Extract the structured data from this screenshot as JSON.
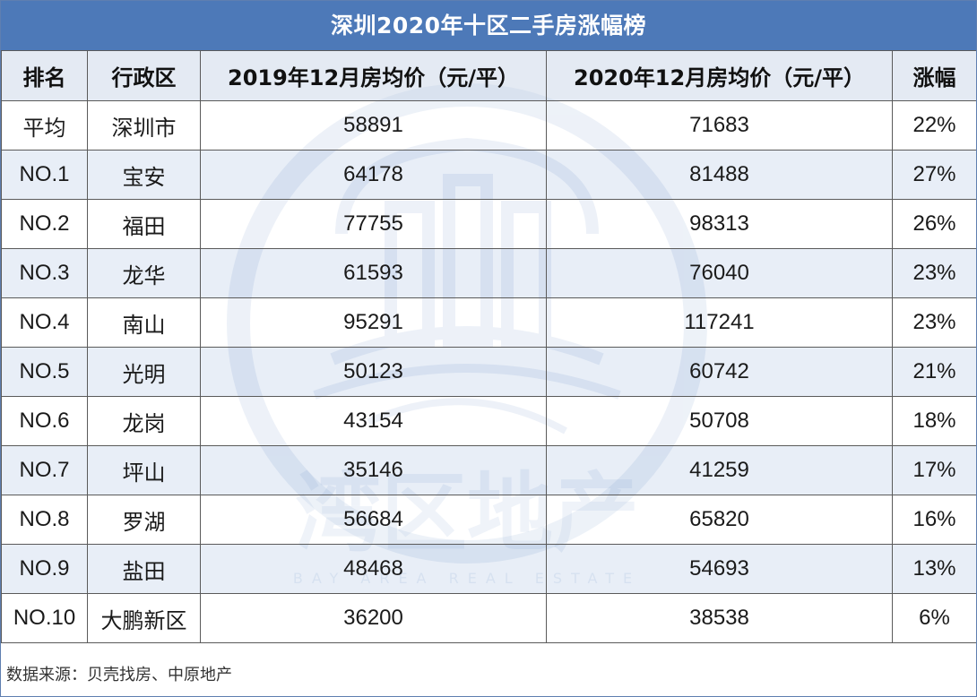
{
  "title": "深圳2020年十区二手房涨幅榜",
  "headers": {
    "rank": "排名",
    "district": "行政区",
    "price_2019": "2019年12月房均价（元/平）",
    "price_2020": "2020年12月房均价（元/平）",
    "change": "涨幅"
  },
  "rows": [
    {
      "rank": "平均",
      "district": "深圳市",
      "price_2019": "58891",
      "price_2020": "71683",
      "change": "22%"
    },
    {
      "rank": "NO.1",
      "district": "宝安",
      "price_2019": "64178",
      "price_2020": "81488",
      "change": "27%"
    },
    {
      "rank": "NO.2",
      "district": "福田",
      "price_2019": "77755",
      "price_2020": "98313",
      "change": "26%"
    },
    {
      "rank": "NO.3",
      "district": "龙华",
      "price_2019": "61593",
      "price_2020": "76040",
      "change": "23%"
    },
    {
      "rank": "NO.4",
      "district": "南山",
      "price_2019": "95291",
      "price_2020": "117241",
      "change": "23%"
    },
    {
      "rank": "NO.5",
      "district": "光明",
      "price_2019": "50123",
      "price_2020": "60742",
      "change": "21%"
    },
    {
      "rank": "NO.6",
      "district": "龙岗",
      "price_2019": "43154",
      "price_2020": "50708",
      "change": "18%"
    },
    {
      "rank": "NO.7",
      "district": "坪山",
      "price_2019": "35146",
      "price_2020": "41259",
      "change": "17%"
    },
    {
      "rank": "NO.8",
      "district": "罗湖",
      "price_2019": "56684",
      "price_2020": "65820",
      "change": "16%"
    },
    {
      "rank": "NO.9",
      "district": "盐田",
      "price_2019": "48468",
      "price_2020": "54693",
      "change": "13%"
    },
    {
      "rank": "NO.10",
      "district": "大鹏新区",
      "price_2019": "36200",
      "price_2020": "38538",
      "change": "6%"
    }
  ],
  "source": "数据来源：贝壳找房、中原地产",
  "watermark": {
    "text": "湾区地产",
    "subtext": "BAY AREA REAL ESTATE",
    "color": "#4d79b8"
  },
  "colors": {
    "title_bar": "#4d79b8",
    "header_bg": "#dae2ee",
    "odd_row_bg": "#d6e0f0"
  }
}
